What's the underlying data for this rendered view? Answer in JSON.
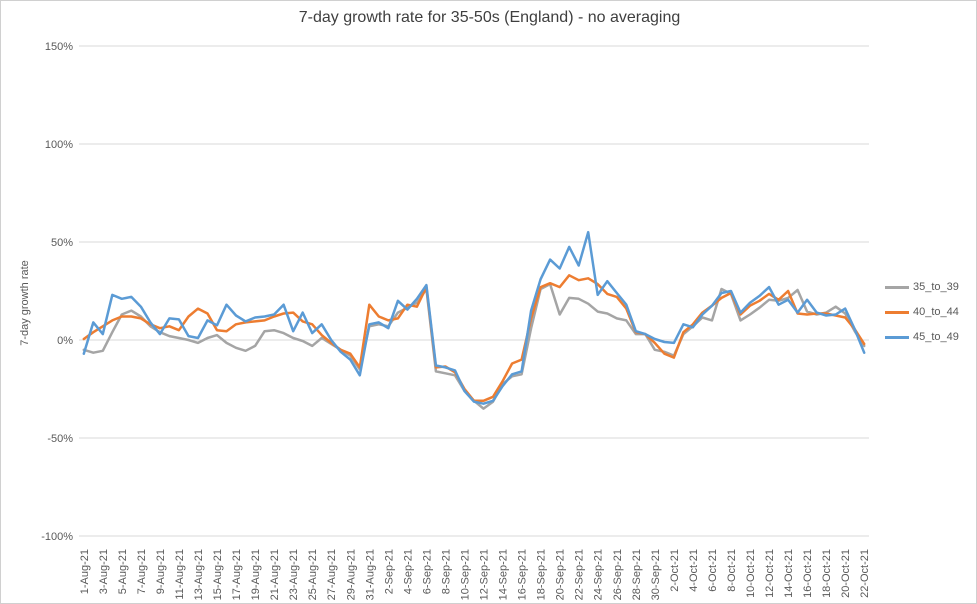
{
  "title": "7-day growth rate for 35-50s (England) - no averaging",
  "y_axis": {
    "title": "7-day growth rate",
    "tick_labels": [
      "150%",
      "100%",
      "50%",
      "0%",
      "-50%",
      "-100%"
    ]
  },
  "legend": [
    {
      "label": "35_to_39",
      "color": "#a5a5a5"
    },
    {
      "label": "40_to_44",
      "color": "#ed7d31"
    },
    {
      "label": "45_to_49",
      "color": "#5b9bd5"
    }
  ],
  "colors": {
    "gridline": "#d9d9d9",
    "axis_text": "#595959",
    "title_text": "#3f3f3f",
    "background": "#ffffff"
  },
  "chart_data": {
    "type": "line",
    "title": "7-day growth rate for 35-50s (England) - no averaging",
    "xlabel": "",
    "ylabel": "7-day growth rate",
    "ylim": [
      -100,
      150
    ],
    "y_tick_step": 50,
    "grid": true,
    "legend_position": "right",
    "x_tick_every": 2,
    "x": [
      "1-Aug-21",
      "2-Aug-21",
      "3-Aug-21",
      "4-Aug-21",
      "5-Aug-21",
      "6-Aug-21",
      "7-Aug-21",
      "8-Aug-21",
      "9-Aug-21",
      "10-Aug-21",
      "11-Aug-21",
      "12-Aug-21",
      "13-Aug-21",
      "14-Aug-21",
      "15-Aug-21",
      "16-Aug-21",
      "17-Aug-21",
      "18-Aug-21",
      "19-Aug-21",
      "20-Aug-21",
      "21-Aug-21",
      "22-Aug-21",
      "23-Aug-21",
      "24-Aug-21",
      "25-Aug-21",
      "26-Aug-21",
      "27-Aug-21",
      "28-Aug-21",
      "29-Aug-21",
      "30-Aug-21",
      "31-Aug-21",
      "1-Sep-21",
      "2-Sep-21",
      "3-Sep-21",
      "4-Sep-21",
      "5-Sep-21",
      "6-Sep-21",
      "7-Sep-21",
      "8-Sep-21",
      "9-Sep-21",
      "10-Sep-21",
      "11-Sep-21",
      "12-Sep-21",
      "13-Sep-21",
      "14-Sep-21",
      "15-Sep-21",
      "16-Sep-21",
      "17-Sep-21",
      "18-Sep-21",
      "19-Sep-21",
      "20-Sep-21",
      "21-Sep-21",
      "22-Sep-21",
      "23-Sep-21",
      "24-Sep-21",
      "25-Sep-21",
      "26-Sep-21",
      "27-Sep-21",
      "28-Sep-21",
      "29-Sep-21",
      "30-Sep-21",
      "1-Oct-21",
      "2-Oct-21",
      "3-Oct-21",
      "4-Oct-21",
      "5-Oct-21",
      "6-Oct-21",
      "7-Oct-21",
      "8-Oct-21",
      "9-Oct-21",
      "10-Oct-21",
      "11-Oct-21",
      "12-Oct-21",
      "13-Oct-21",
      "14-Oct-21",
      "15-Oct-21",
      "16-Oct-21",
      "17-Oct-21",
      "18-Oct-21",
      "19-Oct-21",
      "20-Oct-21",
      "21-Oct-21",
      "22-Oct-21"
    ],
    "series": [
      {
        "name": "35_to_39",
        "color": "#a5a5a5",
        "values": [
          -5,
          -6.5,
          -5.5,
          4,
          13,
          15,
          12,
          7,
          4,
          2,
          1,
          0,
          -1.5,
          1,
          2.5,
          -1.5,
          -4,
          -5.5,
          -3,
          4.5,
          5,
          3.5,
          1,
          -0.5,
          -3,
          1,
          -2,
          -5,
          -8,
          -15,
          7,
          8,
          7,
          14,
          16.5,
          19,
          26,
          -16,
          -17,
          -18,
          -26,
          -31,
          -35,
          -31.5,
          -22.5,
          -18.5,
          -17.5,
          6,
          26,
          28.5,
          13,
          21.5,
          21,
          18.5,
          14.5,
          13.5,
          11,
          10,
          3,
          3,
          -5,
          -6,
          -8,
          3,
          7,
          11.5,
          10,
          26,
          23.5,
          10,
          13,
          16.5,
          20.5,
          20,
          21.5,
          25.5,
          14.5,
          13,
          14,
          17,
          13.5,
          4.5,
          -3
        ]
      },
      {
        "name": "40_to_44",
        "color": "#ed7d31",
        "values": [
          0.5,
          4,
          7,
          10,
          12,
          12,
          11,
          8,
          6,
          7,
          5,
          12,
          16,
          13.5,
          5,
          4.5,
          8,
          9,
          9.5,
          10,
          12,
          13.5,
          14,
          9.5,
          8,
          2.5,
          -1.5,
          -5,
          -7,
          -14,
          18,
          12,
          10,
          11,
          18,
          17,
          27,
          -14,
          -13.5,
          -16.5,
          -25,
          -31,
          -31,
          -29,
          -21,
          -12,
          -10,
          11,
          27,
          29,
          27,
          33,
          30.5,
          31.5,
          28.5,
          23.5,
          22,
          16,
          4,
          3,
          -1.5,
          -7,
          -9,
          4,
          8,
          14,
          17.5,
          21.5,
          24,
          13,
          17.5,
          20,
          23.5,
          20.5,
          25,
          13.5,
          13,
          13.5,
          13.5,
          12.5,
          11.5,
          5.5,
          -2
        ]
      },
      {
        "name": "45_to_49",
        "color": "#5b9bd5",
        "values": [
          -7,
          9,
          3,
          23,
          21,
          22,
          17,
          9,
          3,
          11,
          10.5,
          2,
          1,
          10,
          7.5,
          18,
          12.5,
          9.5,
          11.5,
          12,
          13,
          18,
          4.5,
          14,
          3.5,
          8,
          0,
          -6,
          -10,
          -18,
          8,
          9,
          6,
          20,
          15.5,
          21,
          28,
          -13,
          -14,
          -15.5,
          -26,
          -31.5,
          -32.5,
          -31,
          -23.5,
          -17.5,
          -16,
          15,
          31,
          41,
          36.5,
          47.5,
          38,
          55,
          23,
          30,
          24,
          18,
          4.5,
          3,
          0.5,
          -1,
          -1.5,
          8,
          6.5,
          13,
          17.5,
          24,
          25,
          14,
          19,
          22.5,
          27,
          18,
          20.5,
          14,
          20.5,
          14,
          12.5,
          13,
          16,
          5.5,
          -6.5
        ]
      }
    ]
  }
}
